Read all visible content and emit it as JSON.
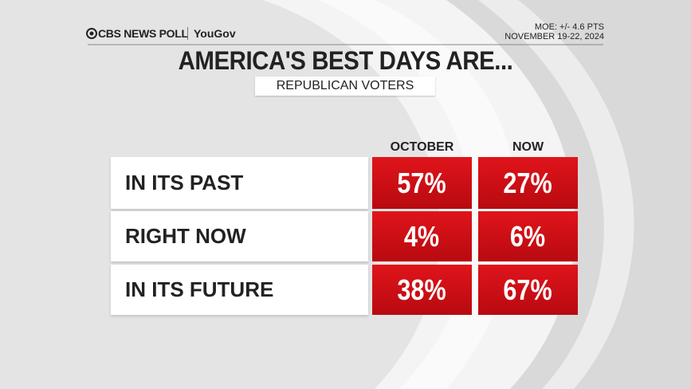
{
  "header": {
    "brand": "CBS NEWS POLL",
    "partner": "YouGov",
    "moe": "MOE: +/- 4.6 PTS",
    "dates": "NOVEMBER 19-22, 2024"
  },
  "title": "AMERICA'S BEST DAYS ARE...",
  "subtitle": "REPUBLICAN VOTERS",
  "table": {
    "columns": [
      "OCTOBER",
      "NOW"
    ],
    "rows": [
      [
        "IN ITS PAST",
        "57%",
        "27%"
      ],
      [
        "RIGHT NOW",
        "4%",
        "6%"
      ],
      [
        "IN ITS FUTURE",
        "38%",
        "67%"
      ]
    ]
  }
}
